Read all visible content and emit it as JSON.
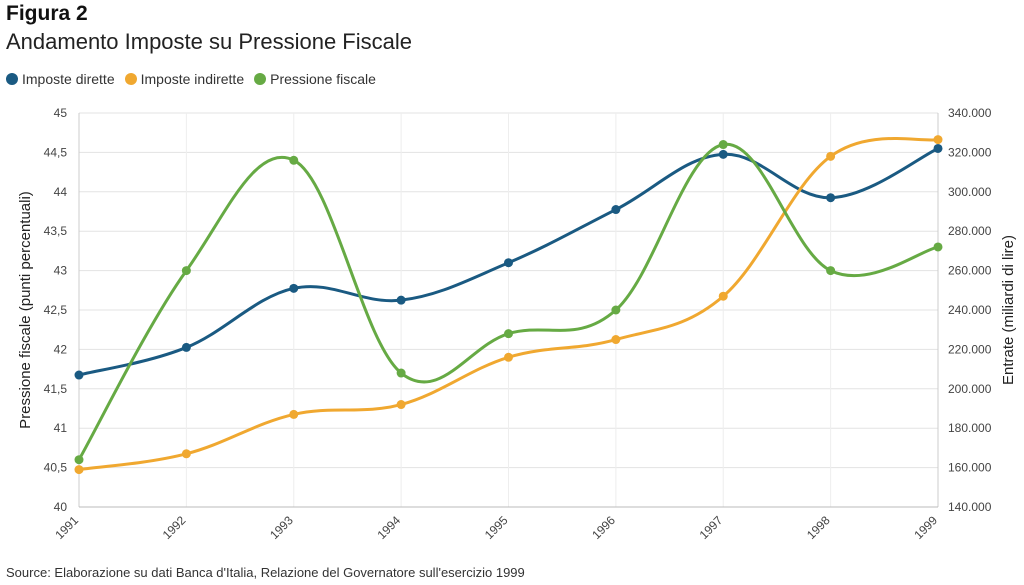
{
  "figure": {
    "label": "Figura 2",
    "title": "Andamento Imposte su Pressione Fiscale",
    "source": "Source: Elaborazione su dati Banca d'Italia, Relazione del Governatore sull'esercizio 1999"
  },
  "chart_data": {
    "type": "line",
    "x": [
      "1991",
      "1992",
      "1993",
      "1994",
      "1995",
      "1996",
      "1997",
      "1998",
      "1999"
    ],
    "left_axis": {
      "label": "Pressione fiscale (punti percentuali)",
      "ylim": [
        40,
        45
      ],
      "ticks": [
        "40",
        "40,5",
        "41",
        "41,5",
        "42",
        "42,5",
        "43",
        "43,5",
        "44",
        "44,5",
        "45"
      ]
    },
    "right_axis": {
      "label": "Entrate (miliardi di lire)",
      "ylim": [
        140000,
        340000
      ],
      "ticks": [
        "140.000",
        "160.000",
        "180.000",
        "200.000",
        "220.000",
        "240.000",
        "260.000",
        "280.000",
        "300.000",
        "320.000",
        "340.000"
      ]
    },
    "series": [
      {
        "name": "Imposte dirette",
        "axis": "right",
        "color": "#1a5a82",
        "values": [
          207000,
          221000,
          251000,
          245000,
          264000,
          291000,
          319000,
          297000,
          322000
        ]
      },
      {
        "name": "Imposte indirette",
        "axis": "right",
        "color": "#f0a830",
        "values": [
          159000,
          167000,
          187000,
          192000,
          216000,
          225000,
          247000,
          318000,
          326500
        ]
      },
      {
        "name": "Pressione fiscale",
        "axis": "left",
        "color": "#66aa44",
        "values": [
          40.6,
          43.0,
          44.4,
          41.7,
          42.2,
          42.5,
          44.6,
          43.0,
          43.3
        ]
      }
    ],
    "grid": "horizontal",
    "legend_position": "top-left"
  }
}
